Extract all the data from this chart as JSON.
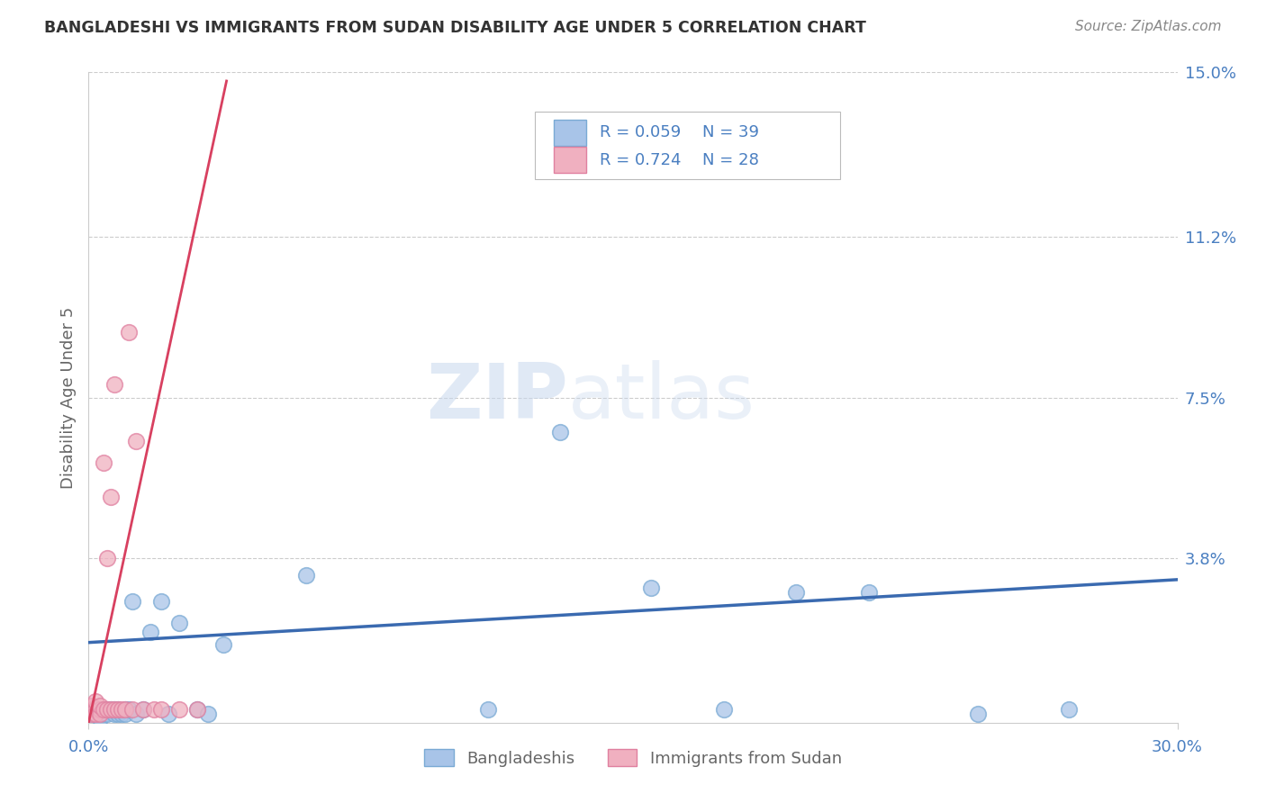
{
  "title": "BANGLADESHI VS IMMIGRANTS FROM SUDAN DISABILITY AGE UNDER 5 CORRELATION CHART",
  "source_text": "Source: ZipAtlas.com",
  "ylabel": "Disability Age Under 5",
  "xlim": [
    0.0,
    0.3
  ],
  "ylim": [
    0.0,
    0.15
  ],
  "xticks": [
    0.0,
    0.3
  ],
  "xticklabels": [
    "0.0%",
    "30.0%"
  ],
  "yticks_right": [
    0.038,
    0.075,
    0.112,
    0.15
  ],
  "yticks_right_labels": [
    "3.8%",
    "7.5%",
    "11.2%",
    "15.0%"
  ],
  "watermark_zip": "ZIP",
  "watermark_atlas": "atlas",
  "blue_color": "#a8c4e8",
  "blue_edge_color": "#7aaad4",
  "pink_color": "#f0b0c0",
  "pink_edge_color": "#e080a0",
  "blue_line_color": "#3a6ab0",
  "pink_line_color": "#d84060",
  "tick_color": "#4a7fc1",
  "grid_color": "#cccccc",
  "background_color": "#ffffff",
  "axis_label_color": "#666666",
  "blue_line_x": [
    0.0,
    0.3
  ],
  "blue_line_y": [
    0.0185,
    0.033
  ],
  "pink_line_x": [
    0.0,
    0.038
  ],
  "pink_line_y": [
    0.0,
    0.148
  ],
  "bangladeshi_x": [
    0.001,
    0.001,
    0.002,
    0.002,
    0.003,
    0.003,
    0.003,
    0.004,
    0.004,
    0.005,
    0.005,
    0.006,
    0.007,
    0.007,
    0.008,
    0.008,
    0.009,
    0.01,
    0.01,
    0.011,
    0.012,
    0.013,
    0.015,
    0.017,
    0.02,
    0.022,
    0.025,
    0.03,
    0.033,
    0.037,
    0.06,
    0.11,
    0.13,
    0.155,
    0.175,
    0.195,
    0.215,
    0.245,
    0.27
  ],
  "bangladeshi_y": [
    0.003,
    0.002,
    0.003,
    0.002,
    0.003,
    0.002,
    0.001,
    0.003,
    0.002,
    0.003,
    0.002,
    0.003,
    0.002,
    0.003,
    0.002,
    0.003,
    0.002,
    0.003,
    0.002,
    0.003,
    0.028,
    0.002,
    0.003,
    0.021,
    0.028,
    0.002,
    0.023,
    0.003,
    0.002,
    0.018,
    0.034,
    0.003,
    0.067,
    0.031,
    0.003,
    0.03,
    0.03,
    0.002,
    0.003
  ],
  "sudan_x": [
    0.001,
    0.001,
    0.001,
    0.002,
    0.002,
    0.002,
    0.003,
    0.003,
    0.003,
    0.004,
    0.004,
    0.005,
    0.005,
    0.006,
    0.006,
    0.007,
    0.007,
    0.008,
    0.009,
    0.01,
    0.011,
    0.012,
    0.013,
    0.015,
    0.018,
    0.02,
    0.025,
    0.03
  ],
  "sudan_y": [
    0.003,
    0.002,
    0.004,
    0.003,
    0.002,
    0.005,
    0.003,
    0.002,
    0.004,
    0.003,
    0.06,
    0.003,
    0.038,
    0.003,
    0.052,
    0.003,
    0.078,
    0.003,
    0.003,
    0.003,
    0.09,
    0.003,
    0.065,
    0.003,
    0.003,
    0.003,
    0.003,
    0.003
  ]
}
